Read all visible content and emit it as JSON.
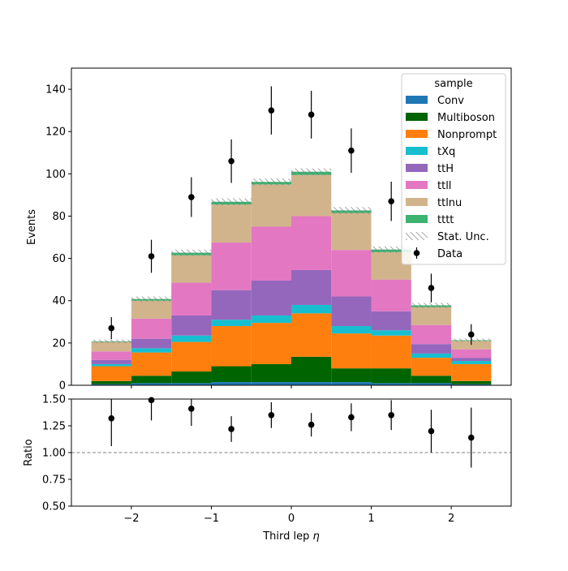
{
  "chart_data": [
    {
      "type": "bar",
      "stacked": true,
      "ylabel": "Events",
      "xlim": [
        -2.75,
        2.75
      ],
      "ylim": [
        0,
        150
      ],
      "bin_edges": [
        -2.5,
        -2.0,
        -1.5,
        -1.0,
        -0.5,
        0.0,
        0.5,
        1.0,
        1.5,
        2.0,
        2.5
      ],
      "yticks": [
        0,
        20,
        40,
        60,
        80,
        100,
        120,
        140
      ],
      "legend": {
        "title": "sample",
        "placement": "top-right",
        "stat_label": "Stat. Unc.",
        "data_label": "Data"
      },
      "series": [
        {
          "name": "Conv",
          "color": "#1f77b4",
          "values": [
            0.5,
            1,
            1,
            1.5,
            1.5,
            1.5,
            1.5,
            1,
            1,
            0.5
          ]
        },
        {
          "name": "Multiboson",
          "color": "#006400",
          "values": [
            1.5,
            3.5,
            5.5,
            7.5,
            8.5,
            12,
            6.5,
            7,
            3.5,
            1.5
          ]
        },
        {
          "name": "Nonprompt",
          "color": "#ff7f0e",
          "values": [
            7,
            11,
            14,
            19,
            19.5,
            20.5,
            16.5,
            15.5,
            8.5,
            8
          ]
        },
        {
          "name": "tXq",
          "color": "#17becf",
          "values": [
            1,
            2,
            3,
            3,
            3.5,
            4,
            3.5,
            2.5,
            2,
            1.5
          ]
        },
        {
          "name": "ttH",
          "color": "#9467bd",
          "values": [
            2,
            4.5,
            9.5,
            14,
            16.5,
            16.5,
            14,
            9,
            4.5,
            1.5
          ]
        },
        {
          "name": "ttll",
          "color": "#e377c2",
          "values": [
            4,
            9.5,
            15.5,
            22.5,
            25.5,
            25.5,
            22,
            15,
            9,
            4
          ]
        },
        {
          "name": "ttlnu",
          "color": "#d2b48c",
          "values": [
            4.5,
            8.5,
            13,
            18,
            20,
            19.5,
            17.5,
            13,
            8.5,
            4
          ]
        },
        {
          "name": "tttt",
          "color": "#3cb371",
          "values": [
            0.3,
            0.8,
            1.2,
            1.3,
            1.2,
            1.5,
            1.2,
            1.2,
            0.8,
            0.3
          ]
        }
      ],
      "stat_unc": [
        0.8,
        1.2,
        1.5,
        1.6,
        1.6,
        1.6,
        1.6,
        1.5,
        1.2,
        0.8
      ],
      "data": {
        "x": [
          -2.25,
          -1.75,
          -1.25,
          -0.75,
          -0.25,
          0.25,
          0.75,
          1.25,
          1.75,
          2.25
        ],
        "y": [
          27,
          61,
          89,
          106,
          130,
          128,
          111,
          87,
          46,
          24
        ],
        "yerr": [
          5.2,
          7.8,
          9.4,
          10.3,
          11.4,
          11.3,
          10.5,
          9.3,
          6.8,
          4.9
        ]
      }
    },
    {
      "type": "scatter",
      "xlabel": "Third lep η",
      "xlabel_text": "Third lep ",
      "xlabel_symbol": "η",
      "ylabel": "Ratio",
      "xlim": [
        -2.75,
        2.75
      ],
      "ylim": [
        0.5,
        1.5
      ],
      "xticks": [
        -2,
        -1,
        0,
        1,
        2
      ],
      "xticklabels": [
        "−2",
        "−1",
        "0",
        "1",
        "2"
      ],
      "yticks": [
        0.5,
        0.75,
        1.0,
        1.25,
        1.5
      ],
      "yticklabels": [
        "0.50",
        "0.75",
        "1.00",
        "1.25",
        "1.50"
      ],
      "reference_line": 1.0,
      "x": [
        -2.25,
        -1.75,
        -1.25,
        -0.75,
        -0.25,
        0.25,
        0.75,
        1.25,
        1.75,
        2.25
      ],
      "y": [
        1.32,
        1.49,
        1.41,
        1.22,
        1.35,
        1.26,
        1.33,
        1.35,
        1.2,
        1.14
      ],
      "yerr": [
        0.26,
        0.19,
        0.16,
        0.12,
        0.12,
        0.11,
        0.13,
        0.14,
        0.2,
        0.28
      ]
    }
  ]
}
